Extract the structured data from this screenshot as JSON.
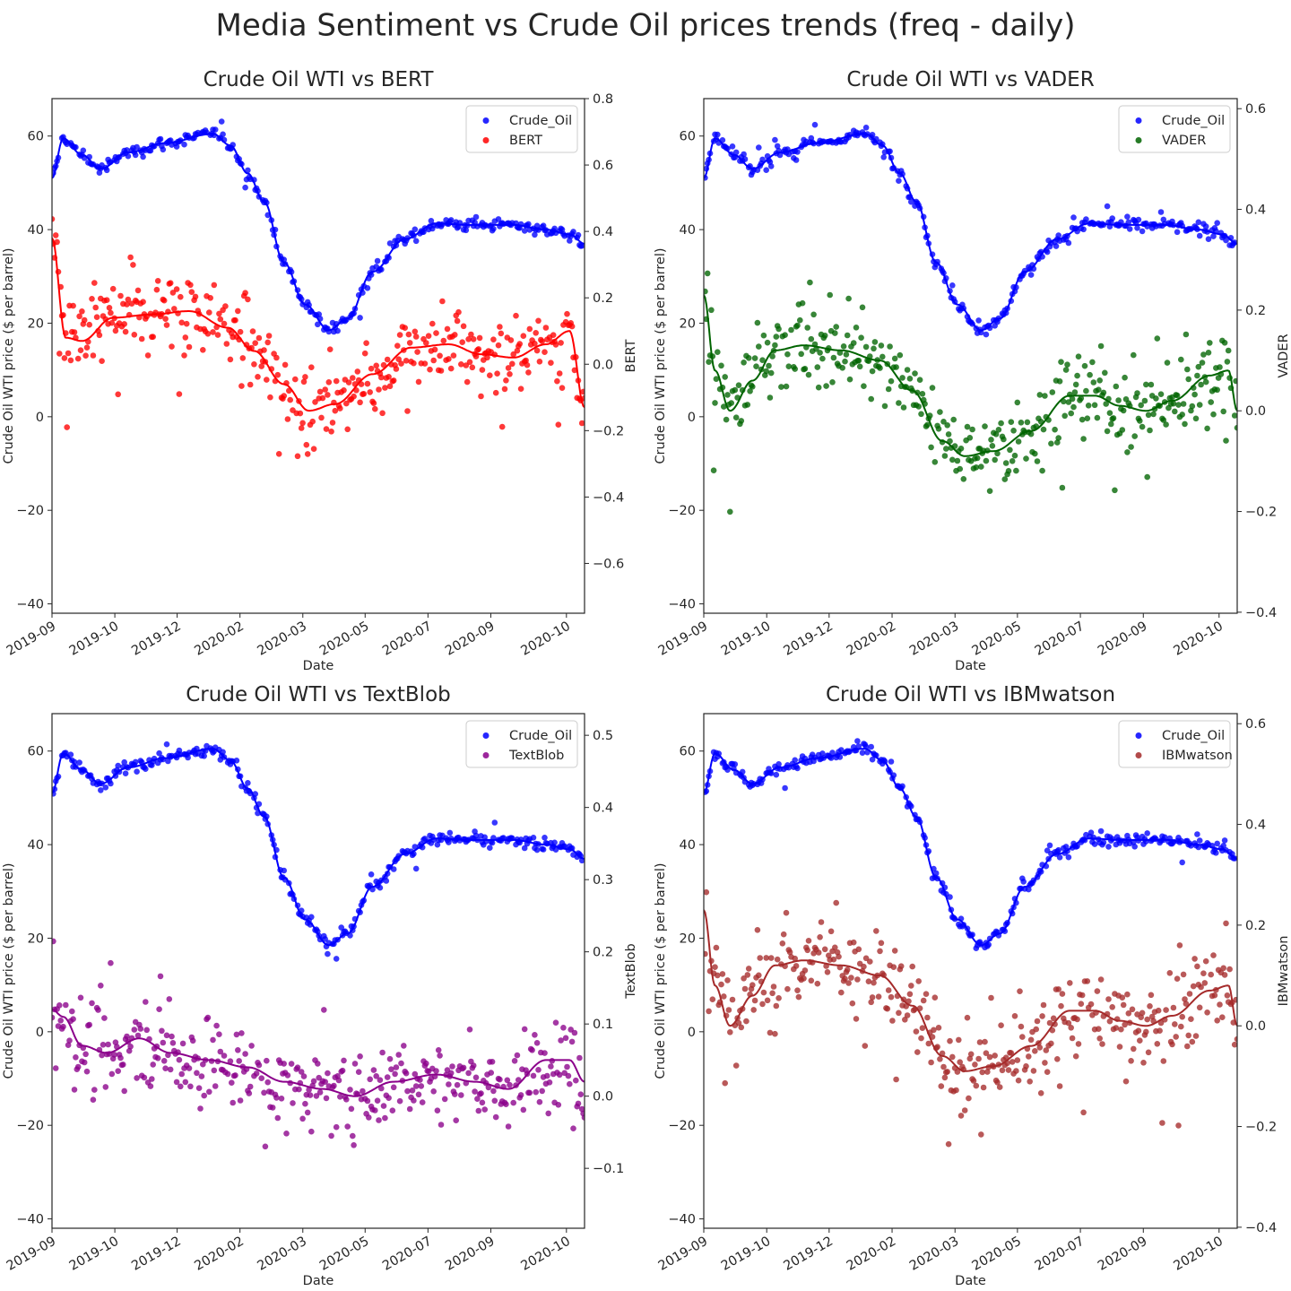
{
  "title": "Media Sentiment vs Crude Oil prices trends (freq - daily)",
  "chart_data": [
    {
      "type": "scatter",
      "title": "Crude Oil WTI vs BERT",
      "xlabel": "Date",
      "ylabel": "Crude Oil WTI price ($ per barrel)",
      "ylabel_right": "BERT",
      "x_tick_labels": [
        "2019-09",
        "2019-10",
        "2019-12",
        "2020-02",
        "2020-03",
        "2020-05",
        "2020-07",
        "2020-09",
        "2020-10"
      ],
      "y_ticks": [
        -40,
        -20,
        0,
        20,
        40,
        60
      ],
      "y_right_ticks": [
        -0.6,
        -0.4,
        -0.2,
        0.0,
        0.2,
        0.4,
        0.6,
        0.8
      ],
      "y_right_tick_labels": [
        "−0.6",
        "−0.4",
        "−0.2",
        "0.0",
        "0.2",
        "0.4",
        "0.6",
        "0.8"
      ],
      "ylim": [
        -42,
        68
      ],
      "ylim_right": [
        -0.75,
        0.8
      ],
      "legend_position": "top-right",
      "grid": false,
      "series": [
        {
          "name": "Crude_Oil",
          "color": "#0000ff",
          "axis": "left",
          "trend": [
            [
              "2019-09-01",
              51
            ],
            [
              "2019-09-10",
              59.5
            ],
            [
              "2019-09-25",
              56
            ],
            [
              "2019-10-10",
              53
            ],
            [
              "2019-11-01",
              56.5
            ],
            [
              "2019-12-01",
              58.5
            ],
            [
              "2020-01-08",
              60.5
            ],
            [
              "2020-01-22",
              58
            ],
            [
              "2020-02-05",
              52
            ],
            [
              "2020-02-18",
              46
            ],
            [
              "2020-03-05",
              33
            ],
            [
              "2020-03-22",
              24
            ],
            [
              "2020-04-10",
              18.5
            ],
            [
              "2020-04-25",
              21
            ],
            [
              "2020-05-15",
              31
            ],
            [
              "2020-06-10",
              38
            ],
            [
              "2020-07-05",
              41.3
            ],
            [
              "2020-08-01",
              41
            ],
            [
              "2020-09-05",
              41
            ],
            [
              "2020-10-01",
              40
            ],
            [
              "2020-10-20",
              39
            ],
            [
              "2020-11-01",
              37
            ]
          ]
        },
        {
          "name": "BERT",
          "color": "#ff0000",
          "axis": "right",
          "trend": [
            [
              "2019-09-01",
              0.38
            ],
            [
              "2019-09-12",
              0.08
            ],
            [
              "2019-09-25",
              0.07
            ],
            [
              "2019-10-20",
              0.14
            ],
            [
              "2019-11-20",
              0.15
            ],
            [
              "2019-12-20",
              0.16
            ],
            [
              "2020-01-20",
              0.11
            ],
            [
              "2020-02-10",
              0.04
            ],
            [
              "2020-03-05",
              -0.06
            ],
            [
              "2020-03-25",
              -0.14
            ],
            [
              "2020-04-15",
              -0.12
            ],
            [
              "2020-05-15",
              -0.03
            ],
            [
              "2020-06-15",
              0.05
            ],
            [
              "2020-07-15",
              0.06
            ],
            [
              "2020-08-10",
              0.03
            ],
            [
              "2020-09-05",
              0.02
            ],
            [
              "2020-10-01",
              0.06
            ],
            [
              "2020-10-20",
              0.1
            ],
            [
              "2020-11-01",
              -0.13
            ]
          ]
        }
      ]
    },
    {
      "type": "scatter",
      "title": "Crude Oil WTI vs VADER",
      "xlabel": "Date",
      "ylabel": "Crude Oil WTI price ($ per barrel)",
      "ylabel_right": "VADER",
      "x_tick_labels": [
        "2019-09",
        "2019-10",
        "2019-12",
        "2020-02",
        "2020-03",
        "2020-05",
        "2020-07",
        "2020-09",
        "2020-10"
      ],
      "y_ticks": [
        -40,
        -20,
        0,
        20,
        40,
        60
      ],
      "y_right_ticks": [
        -0.4,
        -0.2,
        0.0,
        0.2,
        0.4,
        0.6
      ],
      "y_right_tick_labels": [
        "−0.4",
        "−0.2",
        "0.0",
        "0.2",
        "0.4",
        "0.6"
      ],
      "ylim": [
        -42,
        68
      ],
      "ylim_right": [
        -0.402,
        0.62
      ],
      "legend_position": "top-right",
      "grid": false,
      "series": [
        {
          "name": "Crude_Oil",
          "color": "#0000ff",
          "axis": "left",
          "trend": [
            [
              "2019-09-01",
              51
            ],
            [
              "2019-09-10",
              59.5
            ],
            [
              "2019-09-25",
              56
            ],
            [
              "2019-10-10",
              53
            ],
            [
              "2019-11-01",
              56.5
            ],
            [
              "2019-12-01",
              58.5
            ],
            [
              "2020-01-08",
              60.5
            ],
            [
              "2020-01-22",
              58
            ],
            [
              "2020-02-05",
              52
            ],
            [
              "2020-02-18",
              46
            ],
            [
              "2020-03-05",
              33
            ],
            [
              "2020-03-22",
              24
            ],
            [
              "2020-04-10",
              18.5
            ],
            [
              "2020-04-25",
              21
            ],
            [
              "2020-05-15",
              31
            ],
            [
              "2020-06-10",
              38
            ],
            [
              "2020-07-05",
              41.3
            ],
            [
              "2020-08-01",
              41
            ],
            [
              "2020-09-05",
              41
            ],
            [
              "2020-10-01",
              40
            ],
            [
              "2020-10-20",
              39
            ],
            [
              "2020-11-01",
              37
            ]
          ]
        },
        {
          "name": "VADER",
          "color": "#006400",
          "axis": "right",
          "trend": [
            [
              "2019-09-01",
              0.23
            ],
            [
              "2019-09-10",
              0.08
            ],
            [
              "2019-09-22",
              0.0
            ],
            [
              "2019-10-10",
              0.06
            ],
            [
              "2019-10-28",
              0.12
            ],
            [
              "2019-11-20",
              0.13
            ],
            [
              "2019-12-20",
              0.12
            ],
            [
              "2020-01-20",
              0.1
            ],
            [
              "2020-02-15",
              0.04
            ],
            [
              "2020-03-10",
              -0.06
            ],
            [
              "2020-03-28",
              -0.09
            ],
            [
              "2020-04-20",
              -0.08
            ],
            [
              "2020-05-20",
              -0.04
            ],
            [
              "2020-06-20",
              0.03
            ],
            [
              "2020-07-10",
              0.03
            ],
            [
              "2020-07-30",
              0.01
            ],
            [
              "2020-08-20",
              0.0
            ],
            [
              "2020-09-10",
              0.02
            ],
            [
              "2020-10-10",
              0.07
            ],
            [
              "2020-10-25",
              0.08
            ],
            [
              "2020-11-01",
              0.0
            ]
          ]
        }
      ]
    },
    {
      "type": "scatter",
      "title": "Crude Oil WTI vs TextBlob",
      "xlabel": "Date",
      "ylabel": "Crude Oil WTI price ($ per barrel)",
      "ylabel_right": "TextBlob",
      "x_tick_labels": [
        "2019-09",
        "2019-10",
        "2019-12",
        "2020-02",
        "2020-03",
        "2020-05",
        "2020-07",
        "2020-09",
        "2020-10"
      ],
      "y_ticks": [
        -40,
        -20,
        0,
        20,
        40,
        60
      ],
      "y_right_ticks": [
        -0.1,
        0.0,
        0.1,
        0.2,
        0.3,
        0.4,
        0.5
      ],
      "y_right_tick_labels": [
        "−0.1",
        "0.0",
        "0.1",
        "0.2",
        "0.3",
        "0.4",
        "0.5"
      ],
      "ylim": [
        -42,
        68
      ],
      "ylim_right": [
        -0.183,
        0.53
      ],
      "legend_position": "top-right",
      "grid": false,
      "series": [
        {
          "name": "Crude_Oil",
          "color": "#0000ff",
          "axis": "left",
          "trend": [
            [
              "2019-09-01",
              51
            ],
            [
              "2019-09-10",
              59.5
            ],
            [
              "2019-09-25",
              56
            ],
            [
              "2019-10-10",
              53
            ],
            [
              "2019-11-01",
              56.5
            ],
            [
              "2019-12-01",
              58.5
            ],
            [
              "2020-01-08",
              60.5
            ],
            [
              "2020-01-22",
              58
            ],
            [
              "2020-02-05",
              52
            ],
            [
              "2020-02-18",
              46
            ],
            [
              "2020-03-05",
              33
            ],
            [
              "2020-03-22",
              24
            ],
            [
              "2020-04-10",
              18.5
            ],
            [
              "2020-04-25",
              21
            ],
            [
              "2020-05-15",
              31
            ],
            [
              "2020-06-10",
              38
            ],
            [
              "2020-07-05",
              41.3
            ],
            [
              "2020-08-01",
              41
            ],
            [
              "2020-09-05",
              41
            ],
            [
              "2020-10-01",
              40
            ],
            [
              "2020-10-20",
              39
            ],
            [
              "2020-11-01",
              37
            ]
          ]
        },
        {
          "name": "TextBlob",
          "color": "#8b008b",
          "axis": "right",
          "trend": [
            [
              "2019-09-01",
              0.12
            ],
            [
              "2019-09-10",
              0.11
            ],
            [
              "2019-09-25",
              0.07
            ],
            [
              "2019-10-15",
              0.06
            ],
            [
              "2019-11-10",
              0.08
            ],
            [
              "2019-12-05",
              0.06
            ],
            [
              "2020-01-05",
              0.05
            ],
            [
              "2020-02-05",
              0.04
            ],
            [
              "2020-03-05",
              0.02
            ],
            [
              "2020-04-05",
              0.01
            ],
            [
              "2020-05-01",
              0.0
            ],
            [
              "2020-06-01",
              0.02
            ],
            [
              "2020-07-05",
              0.03
            ],
            [
              "2020-08-05",
              0.02
            ],
            [
              "2020-09-01",
              0.01
            ],
            [
              "2020-10-01",
              0.05
            ],
            [
              "2020-10-20",
              0.05
            ],
            [
              "2020-11-01",
              0.02
            ]
          ]
        }
      ]
    },
    {
      "type": "scatter",
      "title": "Crude Oil WTI vs IBMwatson",
      "xlabel": "Date",
      "ylabel": "Crude Oil WTI price ($ per barrel)",
      "ylabel_right": "IBMwatson",
      "x_tick_labels": [
        "2019-09",
        "2019-10",
        "2019-12",
        "2020-02",
        "2020-03",
        "2020-05",
        "2020-07",
        "2020-09",
        "2020-10"
      ],
      "y_ticks": [
        -40,
        -20,
        0,
        20,
        40,
        60
      ],
      "y_right_ticks": [
        -0.4,
        -0.2,
        0.0,
        0.2,
        0.4,
        0.6
      ],
      "y_right_tick_labels": [
        "−0.4",
        "−0.2",
        "0.0",
        "0.2",
        "0.4",
        "0.6"
      ],
      "ylim": [
        -42,
        68
      ],
      "ylim_right": [
        -0.402,
        0.62
      ],
      "legend_position": "top-right",
      "grid": false,
      "series": [
        {
          "name": "Crude_Oil",
          "color": "#0000ff",
          "axis": "left",
          "trend": [
            [
              "2019-09-01",
              51
            ],
            [
              "2019-09-10",
              59.5
            ],
            [
              "2019-09-25",
              56
            ],
            [
              "2019-10-10",
              53
            ],
            [
              "2019-11-01",
              56.5
            ],
            [
              "2019-12-01",
              58.5
            ],
            [
              "2020-01-08",
              60.5
            ],
            [
              "2020-01-22",
              58
            ],
            [
              "2020-02-05",
              52
            ],
            [
              "2020-02-18",
              46
            ],
            [
              "2020-03-05",
              33
            ],
            [
              "2020-03-22",
              24
            ],
            [
              "2020-04-10",
              18.5
            ],
            [
              "2020-04-25",
              21
            ],
            [
              "2020-05-15",
              31
            ],
            [
              "2020-06-10",
              38
            ],
            [
              "2020-07-05",
              41.3
            ],
            [
              "2020-08-01",
              41
            ],
            [
              "2020-09-05",
              41
            ],
            [
              "2020-10-01",
              40
            ],
            [
              "2020-10-20",
              39
            ],
            [
              "2020-11-01",
              37
            ]
          ]
        },
        {
          "name": "IBMwatson",
          "color": "#a52a2a",
          "axis": "right",
          "trend": [
            [
              "2019-09-01",
              0.23
            ],
            [
              "2019-09-10",
              0.08
            ],
            [
              "2019-09-22",
              0.0
            ],
            [
              "2019-10-10",
              0.06
            ],
            [
              "2019-10-28",
              0.12
            ],
            [
              "2019-11-20",
              0.13
            ],
            [
              "2019-12-20",
              0.12
            ],
            [
              "2020-01-20",
              0.1
            ],
            [
              "2020-02-15",
              0.04
            ],
            [
              "2020-03-10",
              -0.06
            ],
            [
              "2020-03-28",
              -0.09
            ],
            [
              "2020-04-20",
              -0.08
            ],
            [
              "2020-05-20",
              -0.04
            ],
            [
              "2020-06-20",
              0.03
            ],
            [
              "2020-07-10",
              0.03
            ],
            [
              "2020-07-30",
              0.01
            ],
            [
              "2020-08-20",
              0.0
            ],
            [
              "2020-09-10",
              0.02
            ],
            [
              "2020-10-10",
              0.07
            ],
            [
              "2020-10-25",
              0.08
            ],
            [
              "2020-11-01",
              0.0
            ]
          ]
        }
      ]
    }
  ]
}
